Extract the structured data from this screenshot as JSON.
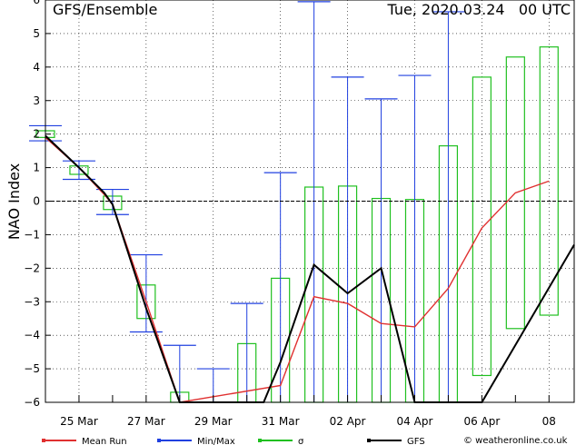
{
  "chart_data": {
    "type": "line",
    "title": "GFS/Ensemble",
    "date_label": "Tue, 2020.03.24   00 UTC",
    "ylabel": "NAO Index",
    "ylim": [
      -6,
      6
    ],
    "yticks": [
      -6,
      -5,
      -4,
      -3,
      -2,
      -1,
      0,
      1,
      2,
      3,
      4,
      5,
      6
    ],
    "xlim": [
      "2020-03-24 00:00",
      "2020-04-08 18:00"
    ],
    "xtick_labels": [
      {
        "label": "25 Mar",
        "date": "2020-03-25"
      },
      {
        "label": "27 Mar",
        "date": "2020-03-27"
      },
      {
        "label": "29 Mar",
        "date": "2020-03-29"
      },
      {
        "label": "31 Mar",
        "date": "2020-03-31"
      },
      {
        "label": "02 Apr",
        "date": "2020-04-02"
      },
      {
        "label": "04 Apr",
        "date": "2020-04-04"
      },
      {
        "label": "06 Apr",
        "date": "2020-04-06"
      },
      {
        "label": "08",
        "date": "2020-04-08"
      }
    ],
    "series": [
      {
        "name": "Mean Run",
        "color": "#e03030",
        "points": [
          [
            "2020-03-24 00:00",
            1.9
          ],
          [
            "2020-03-25 00:00",
            1.0
          ],
          [
            "2020-03-25 18:00",
            0.2
          ],
          [
            "2020-03-26 00:00",
            -0.1
          ],
          [
            "2020-03-27 00:00",
            -3.0
          ],
          [
            "2020-03-28 00:00",
            -6.3
          ],
          [
            "2020-03-31 00:00",
            -5.5
          ],
          [
            "2020-04-01 00:00",
            -2.85
          ],
          [
            "2020-04-02 00:00",
            -3.05
          ],
          [
            "2020-04-03 00:00",
            -3.65
          ],
          [
            "2020-04-04 00:00",
            -3.75
          ],
          [
            "2020-04-05 00:00",
            -2.6
          ],
          [
            "2020-04-06 00:00",
            -0.8
          ],
          [
            "2020-04-07 00:00",
            0.25
          ],
          [
            "2020-04-08 00:00",
            0.6
          ]
        ]
      },
      {
        "name": "Min/Max",
        "color": "#2040e0",
        "ranges": [
          {
            "t": "2020-03-24 00:00",
            "min": 1.8,
            "max": 2.25
          },
          {
            "t": "2020-03-25 00:00",
            "min": 0.65,
            "max": 1.2
          },
          {
            "t": "2020-03-26 00:00",
            "min": -0.4,
            "max": 0.35
          },
          {
            "t": "2020-03-27 00:00",
            "min": -3.9,
            "max": -1.6
          },
          {
            "t": "2020-03-28 00:00",
            "min": -6.5,
            "max": -4.3
          },
          {
            "t": "2020-03-29 00:00",
            "min": -6.5,
            "max": -5.0
          },
          {
            "t": "2020-03-30 00:00",
            "min": -6.5,
            "max": -3.05
          },
          {
            "t": "2020-03-31 00:00",
            "min": -6.5,
            "max": 0.85
          },
          {
            "t": "2020-04-01 00:00",
            "min": -6.5,
            "max": 5.95
          },
          {
            "t": "2020-04-02 00:00",
            "min": -6.5,
            "max": 3.7
          },
          {
            "t": "2020-04-03 00:00",
            "min": -6.5,
            "max": 3.05
          },
          {
            "t": "2020-04-04 00:00",
            "min": -6.5,
            "max": 3.75
          },
          {
            "t": "2020-04-05 00:00",
            "min": -6.5,
            "max": 5.65
          }
        ]
      },
      {
        "name": "σ",
        "color": "#20c020",
        "ranges": [
          {
            "t": "2020-03-24 00:00",
            "low": 1.9,
            "high": 2.1
          },
          {
            "t": "2020-03-25 00:00",
            "low": 0.8,
            "high": 1.05
          },
          {
            "t": "2020-03-26 00:00",
            "low": -0.25,
            "high": 0.15
          },
          {
            "t": "2020-03-27 00:00",
            "low": -3.5,
            "high": -2.5
          },
          {
            "t": "2020-03-28 00:00",
            "low": -6.5,
            "high": -5.7
          },
          {
            "t": "2020-03-30 00:00",
            "low": -6.5,
            "high": -4.25
          },
          {
            "t": "2020-03-31 00:00",
            "low": -6.5,
            "high": -2.3
          },
          {
            "t": "2020-04-01 00:00",
            "low": -6.5,
            "high": 0.42
          },
          {
            "t": "2020-04-02 00:00",
            "low": -6.5,
            "high": 0.45
          },
          {
            "t": "2020-04-03 00:00",
            "low": -6.5,
            "high": 0.08
          },
          {
            "t": "2020-04-04 00:00",
            "low": -6.5,
            "high": 0.05
          },
          {
            "t": "2020-04-05 00:00",
            "low": -6.5,
            "high": 1.65
          },
          {
            "t": "2020-04-06 00:00",
            "low": -5.2,
            "high": 3.7
          },
          {
            "t": "2020-04-07 00:00",
            "low": -3.8,
            "high": 4.3
          },
          {
            "t": "2020-04-08 00:00",
            "low": -3.4,
            "high": 4.6
          }
        ]
      },
      {
        "name": "GFS",
        "color": "#000000",
        "points": [
          [
            "2020-03-24 00:00",
            1.95
          ],
          [
            "2020-03-25 00:00",
            1.0
          ],
          [
            "2020-03-25 18:00",
            0.25
          ],
          [
            "2020-03-26 00:00",
            -0.1
          ],
          [
            "2020-03-27 00:00",
            -3.2
          ],
          [
            "2020-03-28 00:00",
            -6.5
          ],
          [
            "2020-03-30 12:00",
            -6.5
          ],
          [
            "2020-03-31 00:00",
            -4.8
          ],
          [
            "2020-04-01 00:00",
            -1.9
          ],
          [
            "2020-04-02 00:00",
            -2.75
          ],
          [
            "2020-04-03 00:00",
            -2.0
          ],
          [
            "2020-04-04 00:00",
            -6.5
          ],
          [
            "2020-04-06 00:00",
            -6.5
          ],
          [
            "2020-04-08 18:00",
            -1.3
          ]
        ]
      }
    ],
    "legend": {
      "placement": "bottom",
      "items": [
        {
          "label": "Mean Run",
          "color": "#e03030"
        },
        {
          "label": "Min/Max",
          "color": "#2040e0"
        },
        {
          "label": "σ",
          "color": "#20c020"
        },
        {
          "label": "GFS",
          "color": "#000000"
        }
      ]
    },
    "credit": "© weatheronline.co.uk",
    "grid": true,
    "zero_line": "dashed"
  }
}
